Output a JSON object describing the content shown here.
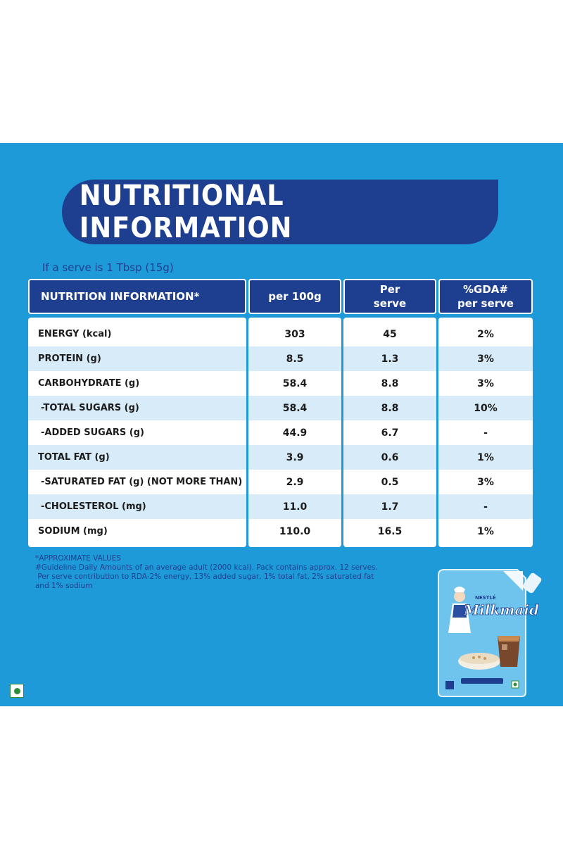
{
  "title": "NUTRITIONAL INFORMATION",
  "serve_note": "If a serve is 1 Tbsp (15g)",
  "headers": {
    "name": "NUTRITION INFORMATION*",
    "per100": "per 100g",
    "per_serve_l1": "Per",
    "per_serve_l2": "serve",
    "gda_l1": "%GDA#",
    "gda_l2": "per serve"
  },
  "rows": [
    {
      "name": "ENERGY (kcal)",
      "per100": "303",
      "serve": "45",
      "gda": "2%"
    },
    {
      "name": "PROTEIN (g)",
      "per100": "8.5",
      "serve": "1.3",
      "gda": "3%"
    },
    {
      "name": "CARBOHYDRATE (g)",
      "per100": "58.4",
      "serve": "8.8",
      "gda": "3%"
    },
    {
      "name": "-TOTAL SUGARS (g)",
      "per100": "58.4",
      "serve": "8.8",
      "gda": "10%"
    },
    {
      "name": "-ADDED SUGARS (g)",
      "per100": "44.9",
      "serve": "6.7",
      "gda": "-"
    },
    {
      "name": "TOTAL FAT (g)",
      "per100": "3.9",
      "serve": "0.6",
      "gda": "1%"
    },
    {
      "name": "-SATURATED FAT (g) (NOT MORE THAN)",
      "per100": "2.9",
      "serve": "0.5",
      "gda": "3%"
    },
    {
      "name": "-CHOLESTEROL (mg)",
      "per100": "11.0",
      "serve": "1.7",
      "gda": "-"
    },
    {
      "name": "SODIUM (mg)",
      "per100": "110.0",
      "serve": "16.5",
      "gda": "1%"
    }
  ],
  "footnotes": {
    "line1": "*APPROXIMATE VALUES",
    "line2": "#Guideline Daily Amounts of an average adult (2000 kcal). Pack contains approx. 12 serves.",
    "line3": " Per serve contribution to RDA-2% energy, 13% added sugar, 1% total fat, 2% saturated fat",
    "line4": "and 1% sodium"
  },
  "pack": {
    "brand": "Milkmaid",
    "maker": "NESTLÉ"
  },
  "colors": {
    "background": "#1f9ad8",
    "navy": "#1e3f8f",
    "row_alt": "#d7ecf8",
    "veg_green": "#2e8b3a"
  }
}
